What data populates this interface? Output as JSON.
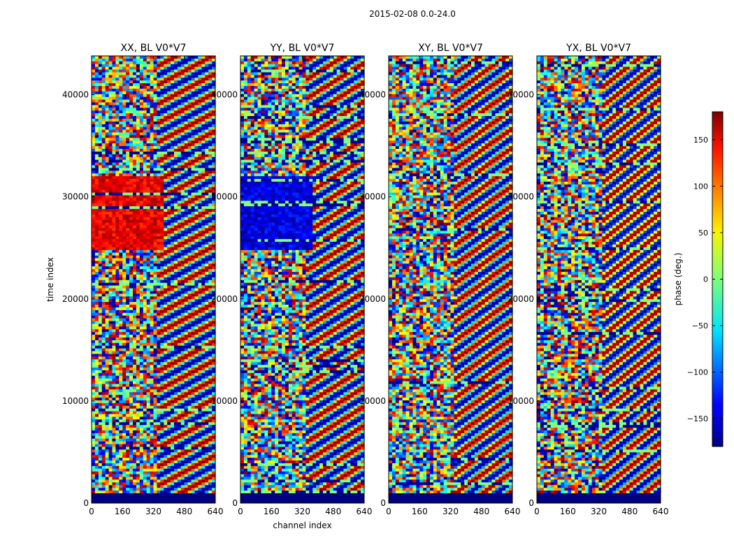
{
  "figure_title": "2015-02-08 0.0-24.0",
  "chart_data": [
    {
      "type": "heatmap",
      "title": "XX, BL V0*V7",
      "xlabel": "",
      "ylabel": "time index",
      "x_ticks": [
        0,
        160,
        320,
        480,
        640
      ],
      "y_ticks": [
        0,
        10000,
        20000,
        30000,
        40000
      ],
      "xlim": [
        0,
        640
      ],
      "ylim": [
        0,
        43800
      ]
    },
    {
      "type": "heatmap",
      "title": "YY, BL V0*V7",
      "xlabel": "channel index",
      "ylabel": "",
      "x_ticks": [
        0,
        160,
        320,
        480,
        640
      ],
      "y_ticks": [
        0,
        10000,
        20000,
        30000,
        40000
      ],
      "xlim": [
        0,
        640
      ],
      "ylim": [
        0,
        43800
      ]
    },
    {
      "type": "heatmap",
      "title": "XY, BL V0*V7",
      "xlabel": "",
      "ylabel": "",
      "x_ticks": [
        0,
        160,
        320,
        480,
        640
      ],
      "y_ticks": [
        0,
        10000,
        20000,
        30000,
        40000
      ],
      "xlim": [
        0,
        640
      ],
      "ylim": [
        0,
        43800
      ]
    },
    {
      "type": "heatmap",
      "title": "YX, BL V0*V7",
      "xlabel": "",
      "ylabel": "",
      "x_ticks": [
        0,
        160,
        320,
        480,
        640
      ],
      "y_ticks": [
        0,
        10000,
        20000,
        30000,
        40000
      ],
      "xlim": [
        0,
        640
      ],
      "ylim": [
        0,
        43800
      ]
    }
  ],
  "colorbar": {
    "label": "phase (deg.)",
    "ticks": [
      150,
      100,
      50,
      0,
      -50,
      -100,
      -150
    ],
    "tick_labels": [
      "150",
      "100",
      "50",
      "0",
      "−50",
      "−100",
      "−150"
    ],
    "range": [
      -180,
      180
    ],
    "colormap": "jet"
  }
}
